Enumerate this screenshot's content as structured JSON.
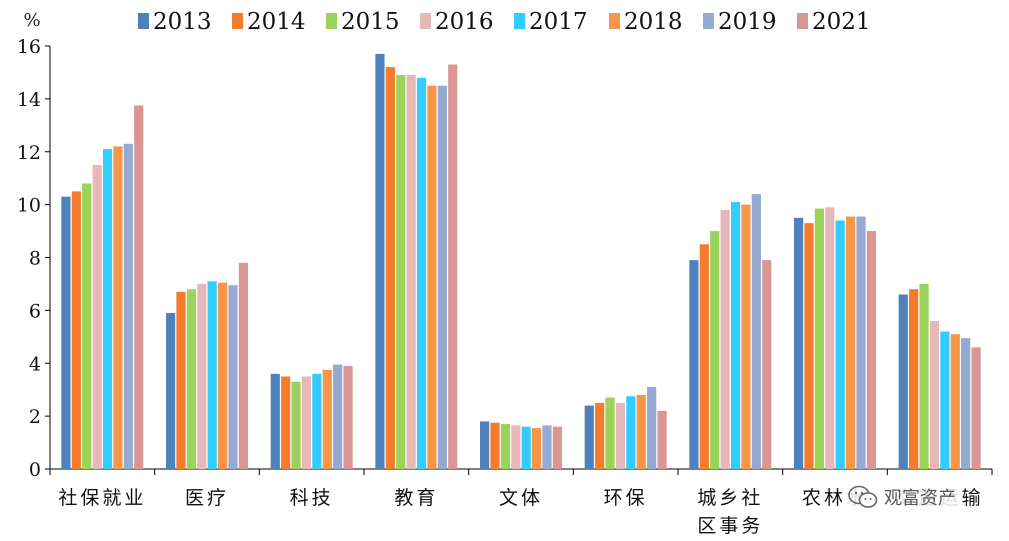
{
  "chart_data": {
    "type": "bar",
    "y_unit_label": "%",
    "ylim": [
      0,
      16
    ],
    "yticks": [
      0,
      2,
      4,
      6,
      8,
      10,
      12,
      14,
      16
    ],
    "grid": false,
    "legend_position": "top",
    "categories": [
      "社保就业",
      "医疗",
      "科技",
      "教育",
      "文体",
      "环保",
      "城乡社区事务",
      "农林水",
      "交通运输"
    ],
    "category_label_lines": [
      [
        "社保就业"
      ],
      [
        "医疗"
      ],
      [
        "科技"
      ],
      [
        "教育"
      ],
      [
        "文体"
      ],
      [
        "环保"
      ],
      [
        "城乡社",
        "区事务"
      ],
      [
        "农林水"
      ],
      [
        "交通运输"
      ]
    ],
    "series": [
      {
        "name": "2013",
        "color": "#4f81bd",
        "values": [
          10.3,
          5.9,
          3.6,
          15.7,
          1.8,
          2.4,
          7.9,
          9.5,
          6.6
        ]
      },
      {
        "name": "2014",
        "color": "#f47c2c",
        "values": [
          10.5,
          6.7,
          3.5,
          15.2,
          1.75,
          2.5,
          8.5,
          9.3,
          6.8
        ]
      },
      {
        "name": "2015",
        "color": "#9bd35a",
        "values": [
          10.8,
          6.8,
          3.3,
          14.9,
          1.7,
          2.7,
          9.0,
          9.85,
          7.0
        ]
      },
      {
        "name": "2016",
        "color": "#e6b8b7",
        "values": [
          11.5,
          7.0,
          3.5,
          14.9,
          1.65,
          2.5,
          9.8,
          9.9,
          5.6
        ]
      },
      {
        "name": "2017",
        "color": "#33ccff",
        "values": [
          12.1,
          7.1,
          3.6,
          14.8,
          1.6,
          2.75,
          10.1,
          9.4,
          5.2
        ]
      },
      {
        "name": "2018",
        "color": "#f79646",
        "values": [
          12.2,
          7.05,
          3.75,
          14.5,
          1.55,
          2.8,
          10.0,
          9.55,
          5.1
        ]
      },
      {
        "name": "2019",
        "color": "#95a9d3",
        "values": [
          12.3,
          6.95,
          3.95,
          14.5,
          1.65,
          3.1,
          10.4,
          9.55,
          4.95
        ]
      },
      {
        "name": "2021",
        "color": "#d99694",
        "values": [
          13.75,
          7.8,
          3.9,
          15.3,
          1.6,
          2.2,
          7.9,
          9.0,
          4.6
        ]
      }
    ]
  },
  "watermark": {
    "icon": "wechat-icon",
    "text": "观富资产"
  }
}
